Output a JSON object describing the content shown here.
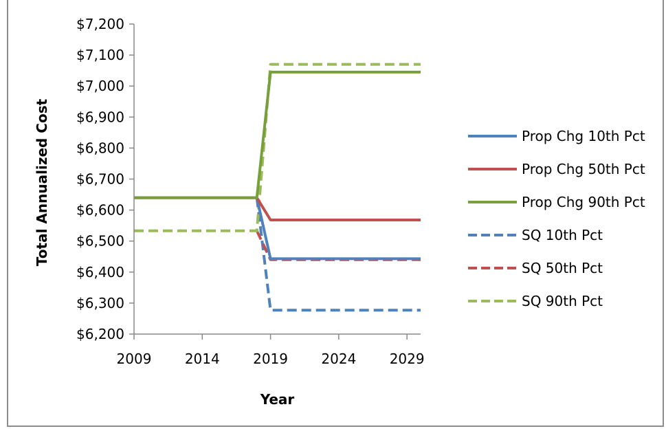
{
  "chart_data": {
    "type": "line",
    "title": "",
    "xlabel": "Year",
    "ylabel": "Total Annualized Cost",
    "xlim": [
      2009,
      2030
    ],
    "ylim": [
      6200,
      7200
    ],
    "x_ticks": [
      2009,
      2014,
      2019,
      2024,
      2029
    ],
    "x_tick_labels": [
      "2009",
      "2014",
      "2019",
      "2024",
      "2029"
    ],
    "y_ticks": [
      6200,
      6300,
      6400,
      6500,
      6600,
      6700,
      6800,
      6900,
      7000,
      7100,
      7200
    ],
    "y_tick_labels": [
      "$6,200",
      "$6,300",
      "$6,400",
      "$6,500",
      "$6,600",
      "$6,700",
      "$6,800",
      "$6,900",
      "$7,000",
      "$7,100",
      "$7,200"
    ],
    "grid": false,
    "legend_position": "right",
    "series": [
      {
        "name": "Prop Chg 10th Pct",
        "color": "#4f81bd",
        "dash": "solid",
        "x": [
          2009,
          2018,
          2019,
          2030
        ],
        "y": [
          6640,
          6640,
          6443,
          6443
        ]
      },
      {
        "name": "Prop Chg 50th Pct",
        "color": "#c0504d",
        "dash": "solid",
        "x": [
          2009,
          2018,
          2019,
          2030
        ],
        "y": [
          6640,
          6640,
          6568,
          6568
        ]
      },
      {
        "name": "Prop Chg 90th Pct",
        "color": "#77a03c",
        "dash": "solid",
        "x": [
          2009,
          2018,
          2019,
          2030
        ],
        "y": [
          6640,
          6640,
          7045,
          7045
        ]
      },
      {
        "name": "SQ 10th Pct",
        "color": "#4f81bd",
        "dash": "dashed",
        "x": [
          2018,
          2019,
          2030
        ],
        "y": [
          6640,
          6277,
          6277
        ]
      },
      {
        "name": "SQ 50th Pct",
        "color": "#c0504d",
        "dash": "dashed",
        "x": [
          2018,
          2019,
          2030
        ],
        "y": [
          6533,
          6440,
          6440
        ]
      },
      {
        "name": "SQ 90th Pct",
        "color": "#9bbb59",
        "dash": "dashed",
        "x": [
          2009,
          2018,
          2019,
          2030
        ],
        "y": [
          6533,
          6533,
          7070,
          7070
        ]
      }
    ]
  }
}
